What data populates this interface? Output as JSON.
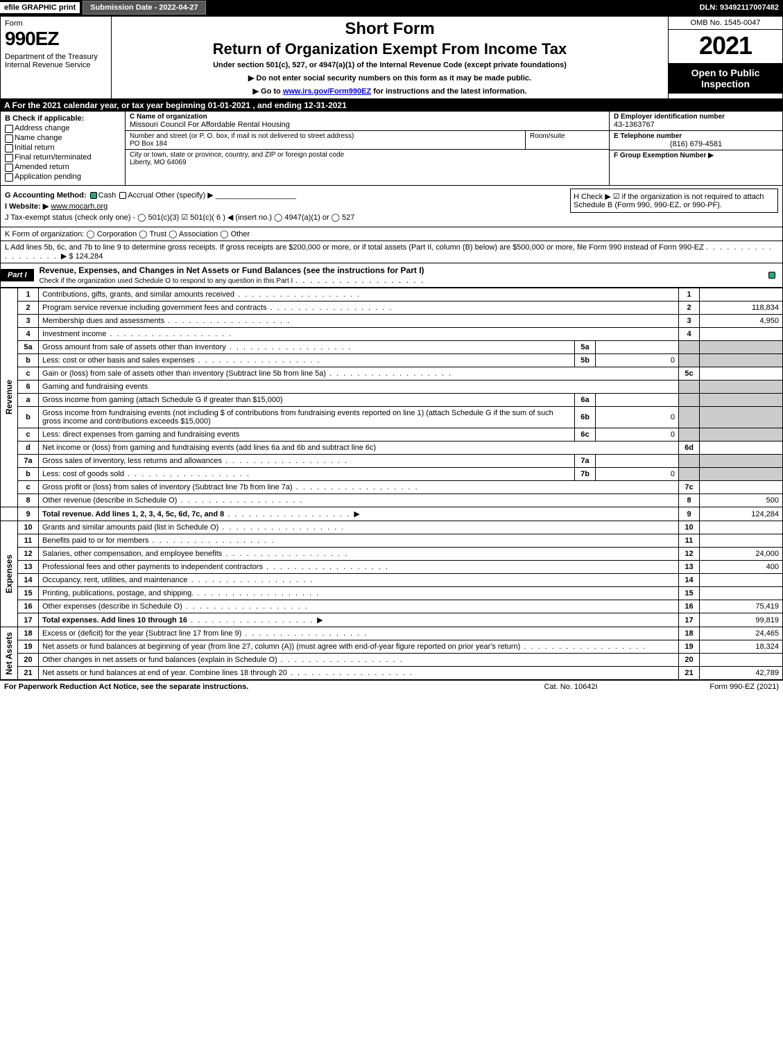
{
  "topbar": {
    "efile": "efile GRAPHIC print",
    "submission": "Submission Date - 2022-04-27",
    "dln": "DLN: 93492117007482"
  },
  "header": {
    "form_word": "Form",
    "form_num": "990EZ",
    "dept": "Department of the Treasury\nInternal Revenue Service",
    "short": "Short Form",
    "title": "Return of Organization Exempt From Income Tax",
    "sub": "Under section 501(c), 527, or 4947(a)(1) of the Internal Revenue Code (except private foundations)",
    "note1": "▶ Do not enter social security numbers on this form as it may be made public.",
    "note2_pre": "▶ Go to ",
    "note2_link": "www.irs.gov/Form990EZ",
    "note2_post": " for instructions and the latest information.",
    "omb": "OMB No. 1545-0047",
    "year": "2021",
    "open": "Open to Public Inspection"
  },
  "A": "A  For the 2021 calendar year, or tax year beginning 01-01-2021 , and ending 12-31-2021",
  "B": {
    "label": "B  Check if applicable:",
    "opts": [
      "Address change",
      "Name change",
      "Initial return",
      "Final return/terminated",
      "Amended return",
      "Application pending"
    ]
  },
  "C": {
    "label": "C Name of organization",
    "name": "Missouri Council For Affordable Rental Housing",
    "street_label": "Number and street (or P. O. box, if mail is not delivered to street address)",
    "street": "PO Box 184",
    "room_label": "Room/suite",
    "city_label": "City or town, state or province, country, and ZIP or foreign postal code",
    "city": "Liberty, MO  64069"
  },
  "D": {
    "label": "D Employer identification number",
    "val": "43-1363767"
  },
  "E": {
    "label": "E Telephone number",
    "val": "(816) 679-4581"
  },
  "F": {
    "label": "F Group Exemption Number  ▶",
    "val": ""
  },
  "G": {
    "text": "G Accounting Method:",
    "cash": "Cash",
    "accrual": "Accrual",
    "other": "Other (specify) ▶"
  },
  "H": "H   Check ▶  ☑  if the organization is not required to attach Schedule B (Form 990, 990-EZ, or 990-PF).",
  "I": {
    "label": "I Website: ▶",
    "val": "www.mocarh.org"
  },
  "J": "J Tax-exempt status (check only one) -  ◯ 501(c)(3)  ☑  501(c)( 6 ) ◀ (insert no.)  ◯  4947(a)(1) or  ◯  527",
  "K": "K Form of organization:   ◯ Corporation   ◯ Trust   ◯ Association   ◯ Other",
  "L": {
    "text": "L Add lines 5b, 6c, and 7b to line 9 to determine gross receipts. If gross receipts are $200,000 or more, or if total assets (Part II, column (B) below) are $500,000 or more, file Form 990 instead of Form 990-EZ",
    "amt": "▶ $ 124,284"
  },
  "part1": {
    "tag": "Part I",
    "title": "Revenue, Expenses, and Changes in Net Assets or Fund Balances (see the instructions for Part I)",
    "check_text": "Check if the organization used Schedule O to respond to any question in this Part I"
  },
  "sidelabels": {
    "rev": "Revenue",
    "exp": "Expenses",
    "net": "Net Assets"
  },
  "lines": {
    "l1": {
      "n": "1",
      "d": "Contributions, gifts, grants, and similar amounts received",
      "ml": "1",
      "ma": ""
    },
    "l2": {
      "n": "2",
      "d": "Program service revenue including government fees and contracts",
      "ml": "2",
      "ma": "118,834"
    },
    "l3": {
      "n": "3",
      "d": "Membership dues and assessments",
      "ml": "3",
      "ma": "4,950"
    },
    "l4": {
      "n": "4",
      "d": "Investment income",
      "ml": "4",
      "ma": ""
    },
    "l5a": {
      "n": "5a",
      "d": "Gross amount from sale of assets other than inventory",
      "sl": "5a",
      "sa": ""
    },
    "l5b": {
      "n": "b",
      "d": "Less: cost or other basis and sales expenses",
      "sl": "5b",
      "sa": "0"
    },
    "l5c": {
      "n": "c",
      "d": "Gain or (loss) from sale of assets other than inventory (Subtract line 5b from line 5a)",
      "ml": "5c",
      "ma": ""
    },
    "l6": {
      "n": "6",
      "d": "Gaming and fundraising events"
    },
    "l6a": {
      "n": "a",
      "d": "Gross income from gaming (attach Schedule G if greater than $15,000)",
      "sl": "6a",
      "sa": ""
    },
    "l6b": {
      "n": "b",
      "d": "Gross income from fundraising events (not including $                          of contributions from fundraising events reported on line 1) (attach Schedule G if the sum of such gross income and contributions exceeds $15,000)",
      "sl": "6b",
      "sa": "0"
    },
    "l6c": {
      "n": "c",
      "d": "Less: direct expenses from gaming and fundraising events",
      "sl": "6c",
      "sa": "0"
    },
    "l6d": {
      "n": "d",
      "d": "Net income or (loss) from gaming and fundraising events (add lines 6a and 6b and subtract line 6c)",
      "ml": "6d",
      "ma": ""
    },
    "l7a": {
      "n": "7a",
      "d": "Gross sales of inventory, less returns and allowances",
      "sl": "7a",
      "sa": ""
    },
    "l7b": {
      "n": "b",
      "d": "Less: cost of goods sold",
      "sl": "7b",
      "sa": "0"
    },
    "l7c": {
      "n": "c",
      "d": "Gross profit or (loss) from sales of inventory (Subtract line 7b from line 7a)",
      "ml": "7c",
      "ma": ""
    },
    "l8": {
      "n": "8",
      "d": "Other revenue (describe in Schedule O)",
      "ml": "8",
      "ma": "500"
    },
    "l9": {
      "n": "9",
      "d": "Total revenue. Add lines 1, 2, 3, 4, 5c, 6d, 7c, and 8",
      "ml": "9",
      "ma": "124,284",
      "bold": true,
      "arrow": true
    },
    "l10": {
      "n": "10",
      "d": "Grants and similar amounts paid (list in Schedule O)",
      "ml": "10",
      "ma": ""
    },
    "l11": {
      "n": "11",
      "d": "Benefits paid to or for members",
      "ml": "11",
      "ma": ""
    },
    "l12": {
      "n": "12",
      "d": "Salaries, other compensation, and employee benefits",
      "ml": "12",
      "ma": "24,000"
    },
    "l13": {
      "n": "13",
      "d": "Professional fees and other payments to independent contractors",
      "ml": "13",
      "ma": "400"
    },
    "l14": {
      "n": "14",
      "d": "Occupancy, rent, utilities, and maintenance",
      "ml": "14",
      "ma": ""
    },
    "l15": {
      "n": "15",
      "d": "Printing, publications, postage, and shipping.",
      "ml": "15",
      "ma": ""
    },
    "l16": {
      "n": "16",
      "d": "Other expenses (describe in Schedule O)",
      "ml": "16",
      "ma": "75,419"
    },
    "l17": {
      "n": "17",
      "d": "Total expenses. Add lines 10 through 16",
      "ml": "17",
      "ma": "99,819",
      "bold": true,
      "arrow": true
    },
    "l18": {
      "n": "18",
      "d": "Excess or (deficit) for the year (Subtract line 17 from line 9)",
      "ml": "18",
      "ma": "24,465"
    },
    "l19": {
      "n": "19",
      "d": "Net assets or fund balances at beginning of year (from line 27, column (A)) (must agree with end-of-year figure reported on prior year's return)",
      "ml": "19",
      "ma": "18,324"
    },
    "l20": {
      "n": "20",
      "d": "Other changes in net assets or fund balances (explain in Schedule O)",
      "ml": "20",
      "ma": ""
    },
    "l21": {
      "n": "21",
      "d": "Net assets or fund balances at end of year. Combine lines 18 through 20",
      "ml": "21",
      "ma": "42,789"
    }
  },
  "footer": {
    "left": "For Paperwork Reduction Act Notice, see the separate instructions.",
    "cat": "Cat. No. 10642I",
    "right": "Form 990-EZ (2021)"
  }
}
